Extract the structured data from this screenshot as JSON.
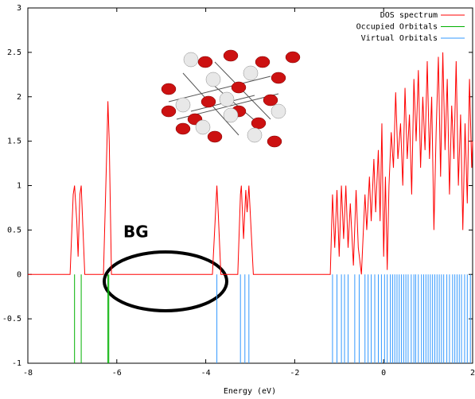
{
  "chart_data": {
    "type": "line",
    "xlabel": "Energy (eV)",
    "xlim": [
      -8,
      2
    ],
    "xticks": [
      -8,
      -6,
      -4,
      -2,
      0,
      2
    ],
    "ylim": [
      -1,
      3
    ],
    "yticks": [
      -1,
      -0.5,
      0,
      0.5,
      1,
      1.5,
      2,
      2.5,
      3
    ],
    "legend": "upper right",
    "annotations": [
      "BG"
    ],
    "series": [
      {
        "name": "DOS spectrum",
        "color": "#ff0000",
        "x": [
          -8,
          -7.05,
          -6.98,
          -6.95,
          -6.9,
          -6.87,
          -6.83,
          -6.8,
          -6.76,
          -6.72,
          -6.3,
          -6.22,
          -6.2,
          -6.17,
          -6.12,
          -3.85,
          -3.77,
          -3.75,
          -3.72,
          -3.66,
          -3.28,
          -3.22,
          -3.2,
          -3.15,
          -3.1,
          -3.07,
          -3.03,
          -2.98,
          -2.93,
          -1.2,
          -1.15,
          -1.1,
          -1.05,
          -1.0,
          -0.95,
          -0.9,
          -0.85,
          -0.8,
          -0.75,
          -0.68,
          -0.62,
          -0.57,
          -0.5,
          -0.42,
          -0.38,
          -0.32,
          -0.28,
          -0.22,
          -0.18,
          -0.12,
          -0.08,
          -0.04,
          0,
          0.04,
          0.08,
          0.12,
          0.17,
          0.22,
          0.27,
          0.32,
          0.38,
          0.43,
          0.48,
          0.53,
          0.58,
          0.63,
          0.68,
          0.73,
          0.78,
          0.83,
          0.88,
          0.93,
          0.98,
          1.03,
          1.08,
          1.13,
          1.18,
          1.23,
          1.28,
          1.33,
          1.38,
          1.43,
          1.48,
          1.53,
          1.58,
          1.63,
          1.68,
          1.73,
          1.78,
          1.83,
          1.88,
          1.93,
          1.98,
          2
        ],
        "values": [
          0,
          0,
          0.9,
          1.0,
          0.6,
          0.2,
          0.9,
          1.0,
          0.5,
          0,
          0,
          1.5,
          1.95,
          1.5,
          0,
          0,
          0.8,
          1.0,
          0.7,
          0,
          0,
          0.9,
          1.0,
          0.4,
          0.95,
          0.7,
          1.0,
          0.5,
          0,
          0,
          0.9,
          0.3,
          0.95,
          0.2,
          1.0,
          0.4,
          1.0,
          0.3,
          0.8,
          0.1,
          0.95,
          0.3,
          0,
          0.9,
          0.5,
          1.1,
          0.6,
          1.3,
          0.7,
          1.4,
          0.6,
          1.7,
          0.2,
          1.1,
          0.05,
          1.0,
          1.6,
          1.2,
          2.05,
          1.3,
          1.7,
          1.0,
          2.1,
          1.3,
          1.8,
          0.9,
          2.2,
          1.5,
          2.3,
          1.2,
          2.0,
          1.4,
          2.4,
          1.3,
          2.0,
          0.5,
          1.6,
          2.45,
          1.1,
          2.5,
          1.4,
          2.2,
          0.9,
          1.9,
          1.3,
          2.4,
          1.0,
          1.8,
          0.5,
          1.7,
          0.8,
          2.2,
          1.2,
          1.5
        ]
      },
      {
        "name": "Occupied Orbitals",
        "color": "#00b000",
        "x": [
          -6.95,
          -6.8,
          -6.2,
          -6.18
        ]
      },
      {
        "name": "Virtual Orbitals",
        "color": "#3399ff",
        "x": [
          -3.75,
          -3.22,
          -3.12,
          -3.03,
          -1.15,
          -1.05,
          -0.95,
          -0.88,
          -0.8,
          -0.65,
          -0.55,
          -0.42,
          -0.35,
          -0.28,
          -0.2,
          -0.12,
          -0.05,
          0.02,
          0.08,
          0.15,
          0.2,
          0.25,
          0.3,
          0.35,
          0.4,
          0.45,
          0.5,
          0.55,
          0.62,
          0.68,
          0.72,
          0.78,
          0.85,
          0.9,
          0.95,
          1.0,
          1.05,
          1.1,
          1.15,
          1.2,
          1.25,
          1.3,
          1.35,
          1.42,
          1.48,
          1.55,
          1.6,
          1.65,
          1.7,
          1.75,
          1.82,
          1.88,
          1.95
        ]
      }
    ]
  }
}
